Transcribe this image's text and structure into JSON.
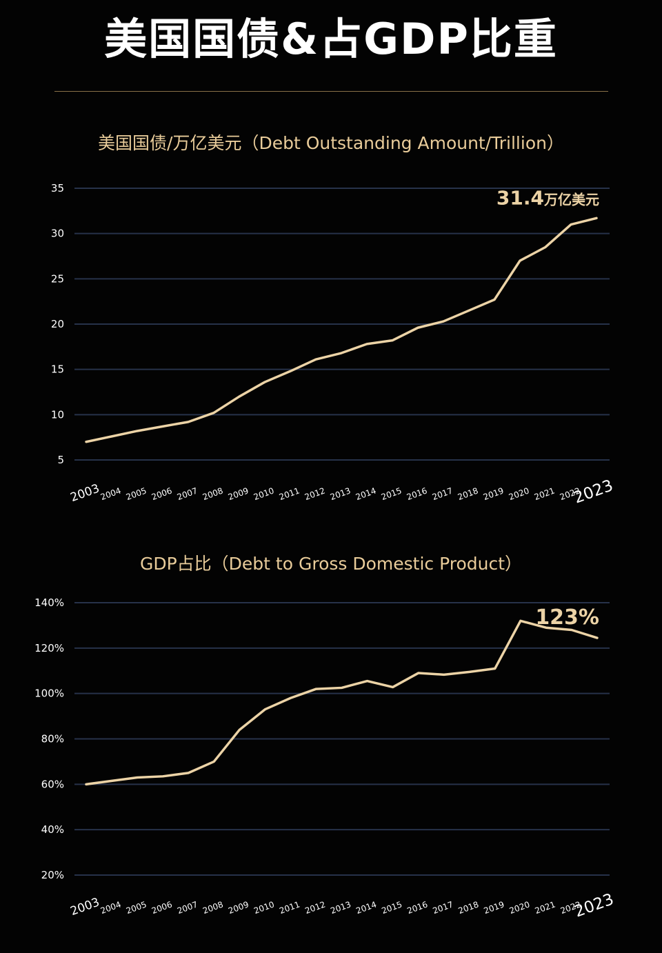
{
  "title": "美国国债&占GDP比重",
  "chart_data": [
    {
      "type": "line",
      "title": "美国国债/万亿美元（Debt Outstanding Amount/Trillion）",
      "x": [
        "2003",
        "2004",
        "2005",
        "2006",
        "2007",
        "2008",
        "2009",
        "2010",
        "2011",
        "2012",
        "2013",
        "2014",
        "2015",
        "2016",
        "2017",
        "2018",
        "2019",
        "2020",
        "2021",
        "2022",
        "2023"
      ],
      "values": [
        7.0,
        7.6,
        8.2,
        8.7,
        9.2,
        10.2,
        12.0,
        13.6,
        14.8,
        16.1,
        16.8,
        17.8,
        18.2,
        19.6,
        20.3,
        21.5,
        22.7,
        27.0,
        28.5,
        31.0,
        31.7
      ],
      "y_ticks": [
        "35",
        "30",
        "25",
        "20",
        "15",
        "10",
        "5"
      ],
      "y_tick_values": [
        35,
        30,
        25,
        20,
        15,
        10,
        5
      ],
      "ylim": [
        5,
        35
      ],
      "annotation": {
        "value": "31.4",
        "unit": "万亿美元"
      },
      "grid": true
    },
    {
      "type": "line",
      "title": "GDP占比（Debt to Gross Domestic Product）",
      "x": [
        "2003",
        "2004",
        "2005",
        "2006",
        "2007",
        "2008",
        "2009",
        "2010",
        "2011",
        "2012",
        "2013",
        "2014",
        "2015",
        "2016",
        "2017",
        "2018",
        "2019",
        "2020",
        "2021",
        "2022",
        "2023"
      ],
      "values": [
        60,
        61.5,
        63,
        63.5,
        65,
        70,
        84,
        93,
        98,
        102,
        102.5,
        105.5,
        102.8,
        109,
        108.3,
        109.5,
        111,
        132,
        129,
        128,
        124.5
      ],
      "y_ticks": [
        "140%",
        "120%",
        "100%",
        "80%",
        "60%",
        "40%",
        "20%"
      ],
      "y_tick_values": [
        140,
        120,
        100,
        80,
        60,
        40,
        20
      ],
      "ylim": [
        20,
        140
      ],
      "annotation": {
        "value": "123%"
      },
      "grid": true
    }
  ]
}
